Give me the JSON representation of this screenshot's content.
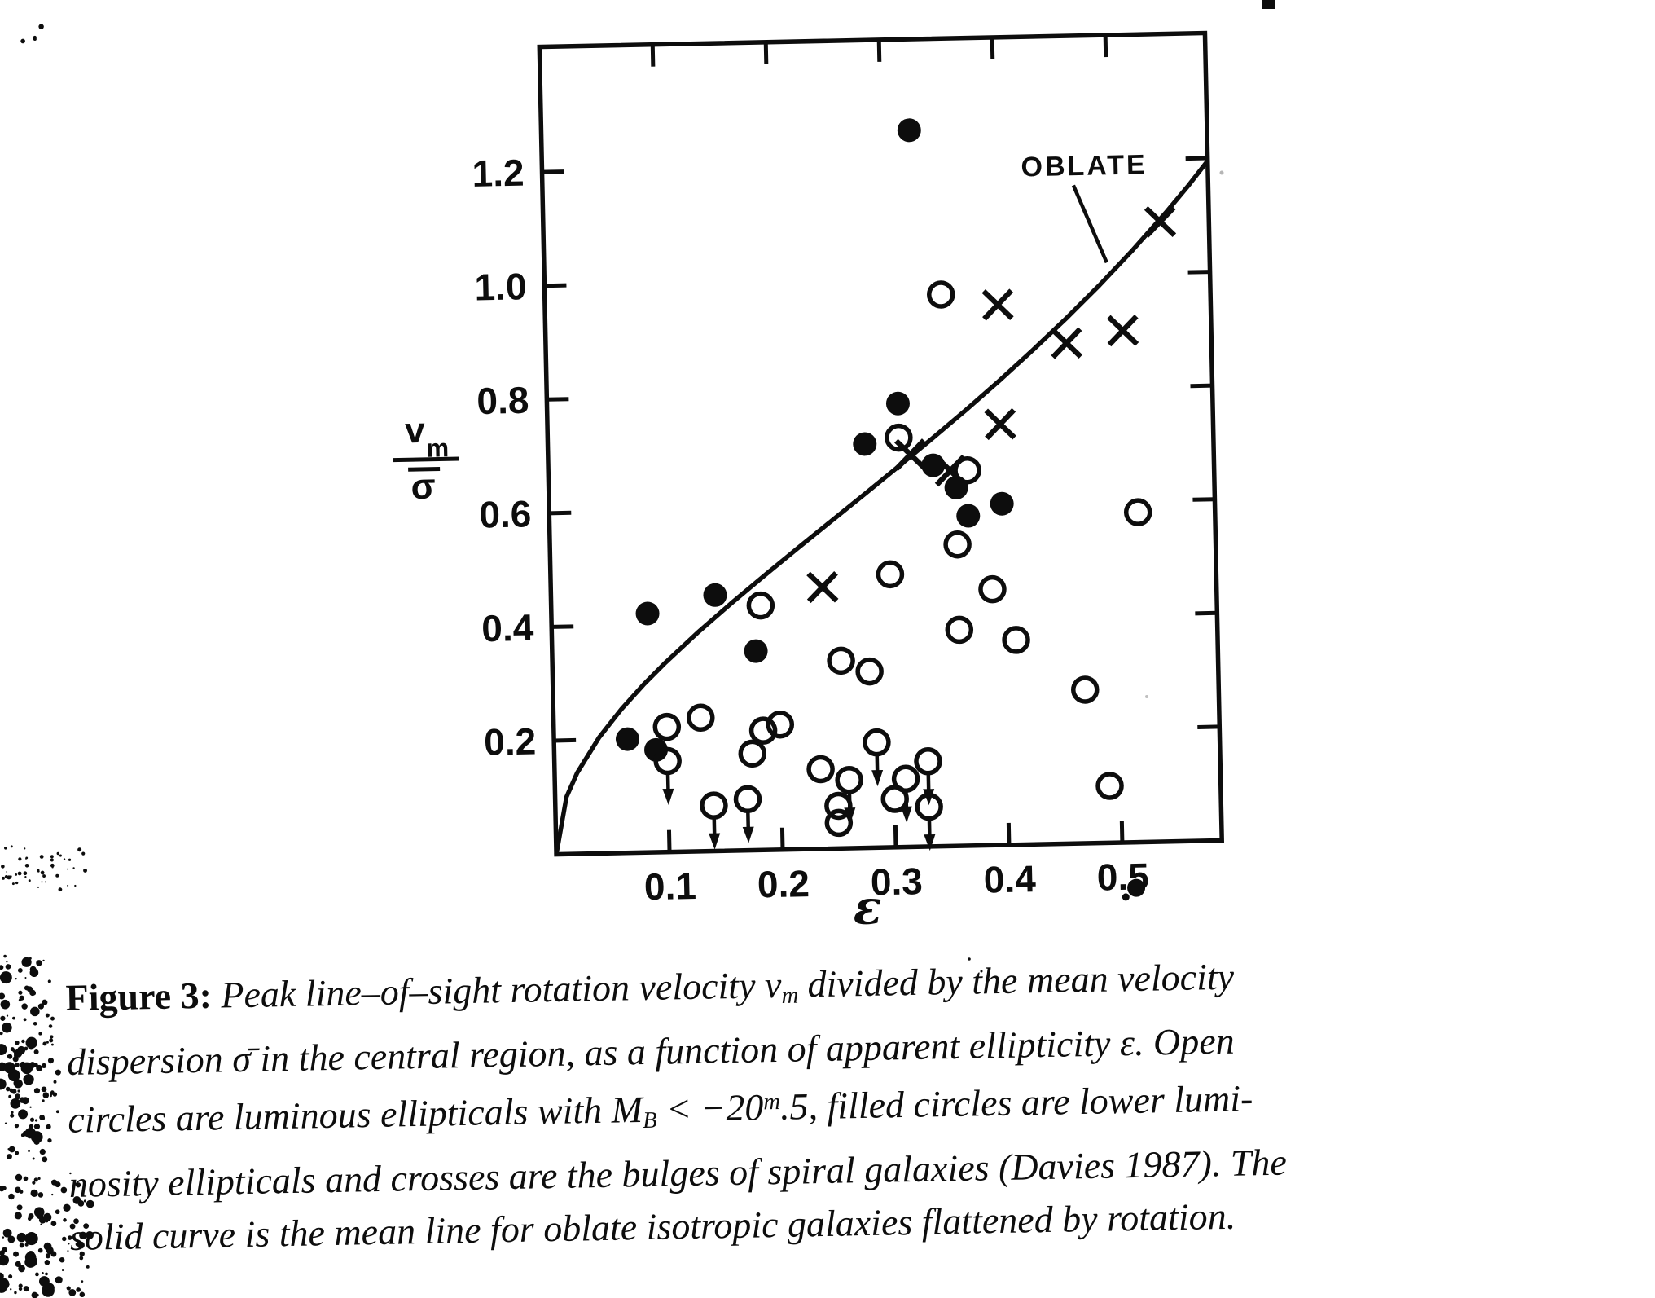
{
  "page": {
    "background": "#ffffff",
    "ink": "#0d0d0d"
  },
  "figure": {
    "y_axis_title": {
      "numerator": "v",
      "numerator_sub": "m",
      "denominator": "σ",
      "denominator_bar": "macron"
    },
    "x_axis_title": "ε",
    "annotation": {
      "label": "OBLATE"
    }
  },
  "chart_data": {
    "type": "scatter",
    "title": "",
    "xlabel": "ε",
    "ylabel": "v_m / σ̄",
    "xlim": [
      0,
      0.588
    ],
    "ylim": [
      0,
      1.42
    ],
    "grid": false,
    "x_ticks": [
      0.1,
      0.2,
      0.3,
      0.4,
      0.5
    ],
    "x_tick_labels": [
      "0.1",
      "0.2",
      "0.3",
      "0.4",
      "0.5"
    ],
    "y_ticks": [
      0.2,
      0.4,
      0.6,
      0.8,
      1.0,
      1.2
    ],
    "y_tick_labels": [
      "0.2",
      "0.4",
      "0.6",
      "0.8",
      "1.0",
      "1.2"
    ],
    "series": [
      {
        "name": "luminous ellipticals (M_B < -20.5), open circles",
        "marker": "open-circle",
        "points": [
          [
            0.35,
            0.97
          ],
          [
            0.31,
            0.72
          ],
          [
            0.37,
            0.66
          ],
          [
            0.52,
            0.58
          ],
          [
            0.36,
            0.53
          ],
          [
            0.3,
            0.48
          ],
          [
            0.39,
            0.45
          ],
          [
            0.185,
            0.43
          ],
          [
            0.36,
            0.38
          ],
          [
            0.41,
            0.36
          ],
          [
            0.255,
            0.33
          ],
          [
            0.28,
            0.31
          ],
          [
            0.47,
            0.27
          ],
          [
            0.13,
            0.235
          ],
          [
            0.1,
            0.22
          ],
          [
            0.2,
            0.22
          ],
          [
            0.185,
            0.21
          ],
          [
            0.175,
            0.17
          ],
          [
            0.235,
            0.14
          ],
          [
            0.49,
            0.1
          ],
          [
            0.3,
            0.085
          ],
          [
            0.25,
            0.075
          ],
          [
            0.25,
            0.045
          ]
        ]
      },
      {
        "name": "lower luminosity ellipticals, filled circles",
        "marker": "filled-circle",
        "points": [
          [
            0.325,
            1.26
          ],
          [
            0.31,
            0.78
          ],
          [
            0.28,
            0.71
          ],
          [
            0.34,
            0.67
          ],
          [
            0.36,
            0.63
          ],
          [
            0.37,
            0.58
          ],
          [
            0.4,
            0.6
          ],
          [
            0.145,
            0.45
          ],
          [
            0.085,
            0.42
          ],
          [
            0.18,
            0.35
          ],
          [
            0.065,
            0.2
          ],
          [
            0.09,
            0.18
          ]
        ]
      },
      {
        "name": "bulges of spiral galaxies (Davies 1987), crosses",
        "marker": "cross",
        "points": [
          [
            0.545,
            1.09
          ],
          [
            0.4,
            0.95
          ],
          [
            0.51,
            0.9
          ],
          [
            0.46,
            0.88
          ],
          [
            0.4,
            0.74
          ],
          [
            0.32,
            0.69
          ],
          [
            0.355,
            0.66
          ],
          [
            0.24,
            0.46
          ]
        ]
      },
      {
        "name": "upper limits, open circles with downward arrows",
        "marker": "open-circle-down-arrow",
        "points": [
          [
            0.1,
            0.16
          ],
          [
            0.14,
            0.08
          ],
          [
            0.17,
            0.09
          ],
          [
            0.26,
            0.12
          ],
          [
            0.285,
            0.185
          ],
          [
            0.33,
            0.15
          ],
          [
            0.31,
            0.12
          ],
          [
            0.33,
            0.07
          ]
        ]
      }
    ],
    "curve": {
      "name": "OBLATE mean line for oblate isotropic galaxies flattened by rotation",
      "formula": "v/sigma = sqrt(eps/(1-eps))",
      "points": [
        [
          0,
          0
        ],
        [
          0.01,
          0.1005
        ],
        [
          0.02,
          0.1429
        ],
        [
          0.04,
          0.2041
        ],
        [
          0.06,
          0.2526
        ],
        [
          0.08,
          0.2949
        ],
        [
          0.1,
          0.3333
        ],
        [
          0.13,
          0.3865
        ],
        [
          0.16,
          0.4364
        ],
        [
          0.19,
          0.4843
        ],
        [
          0.22,
          0.5311
        ],
        [
          0.25,
          0.5774
        ],
        [
          0.28,
          0.6236
        ],
        [
          0.31,
          0.6703
        ],
        [
          0.34,
          0.7177
        ],
        [
          0.37,
          0.7662
        ],
        [
          0.4,
          0.8165
        ],
        [
          0.43,
          0.8687
        ],
        [
          0.46,
          0.923
        ],
        [
          0.49,
          0.9802
        ],
        [
          0.52,
          1.0408
        ],
        [
          0.55,
          1.1055
        ],
        [
          0.57,
          1.1511
        ],
        [
          0.588,
          1.1952
        ]
      ]
    },
    "annotations": [
      {
        "text": "OBLATE",
        "pointer_from_xy": [
          0.469,
          1.157
        ],
        "pointer_to_xy": [
          0.497,
          1.02
        ]
      }
    ],
    "legend_position": "none"
  },
  "caption": {
    "lines": [
      [
        {
          "t": "Figure 3:",
          "s": "b"
        },
        {
          "t": "  Peak line–of–sight rotation velocity ",
          "s": "i"
        },
        {
          "t": "v",
          "s": "i"
        },
        {
          "t": "m",
          "s": "isub"
        },
        {
          "t": " divided by the mean velocity",
          "s": "i"
        }
      ],
      [
        {
          "t": "dispersion σ̄ in the central region, as a function of apparent ellipticity ε.  Open",
          "s": "i"
        }
      ],
      [
        {
          "t": "circles are luminous ellipticals with ",
          "s": "i"
        },
        {
          "t": "M",
          "s": "i"
        },
        {
          "t": "B",
          "s": "isub"
        },
        {
          "t": " < −20",
          "s": "i"
        },
        {
          "t": "m",
          "s": "isup"
        },
        {
          "t": ".5, filled circles are lower lumi-",
          "s": "i"
        }
      ],
      [
        {
          "t": "nosity ellipticals and crosses are the bulges of spiral galaxies (Davies 1987). The",
          "s": "i"
        }
      ],
      [
        {
          "t": "solid curve is the mean line for oblate isotropic galaxies flattened by rotation.",
          "s": "i"
        }
      ]
    ]
  }
}
